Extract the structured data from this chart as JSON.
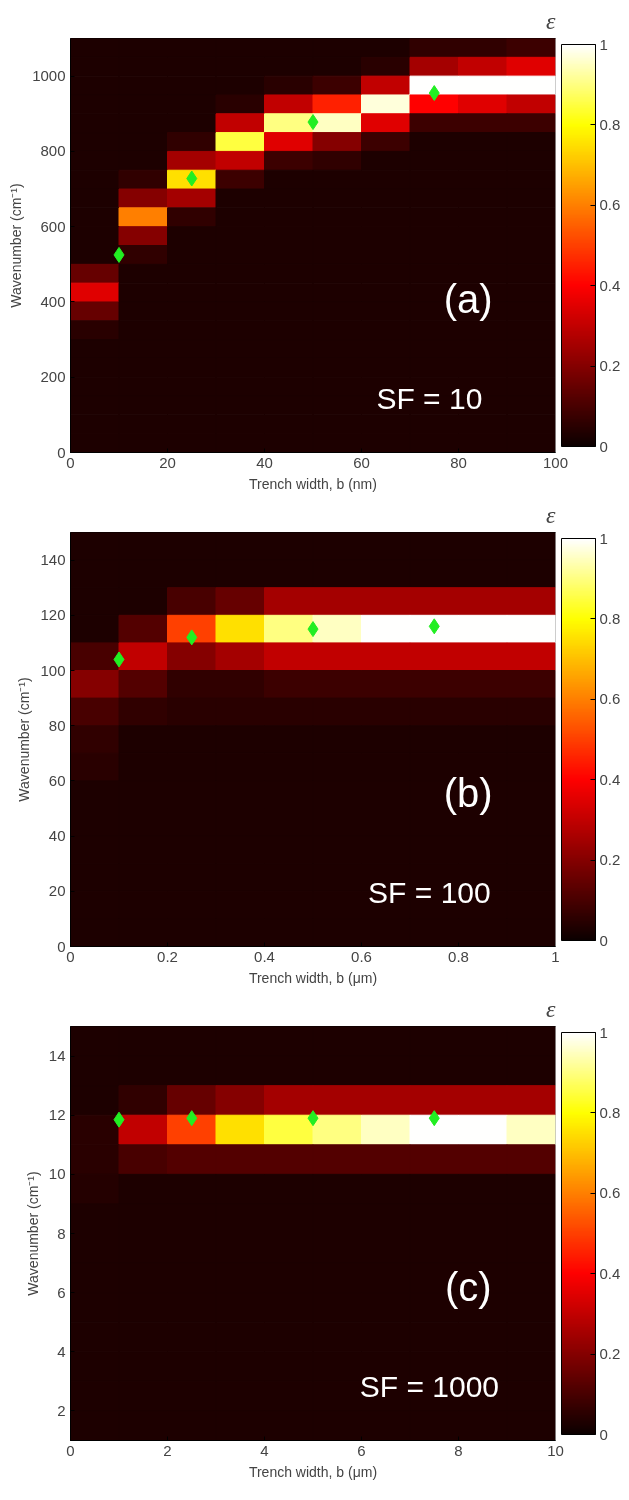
{
  "chart_data": [
    {
      "type": "heatmap",
      "xlabel": "Trench width, b (nm)",
      "ylabel": "Wavenumber (cm⁻¹)",
      "clabel": "ε",
      "annotations": [
        "(a)",
        "SF = 10"
      ],
      "xlim": [
        0,
        100
      ],
      "ylim": [
        0,
        1100
      ],
      "xticks": [
        0,
        20,
        40,
        60,
        80,
        100
      ],
      "yticks": [
        0,
        200,
        400,
        600,
        800,
        1000
      ],
      "clim": [
        0,
        1
      ],
      "cticks": [
        0,
        0.2,
        0.4,
        0.6,
        0.8,
        1
      ],
      "marker": "diamond",
      "x": [
        5,
        15,
        25,
        35,
        45,
        55,
        65,
        75,
        85,
        95
      ],
      "y": [
        1075,
        1025,
        975,
        925,
        875,
        825,
        775,
        725,
        675,
        625,
        575,
        525,
        475,
        425,
        375,
        325,
        275,
        225,
        175,
        125,
        75,
        25
      ],
      "cells": [
        [
          0.03,
          0.03,
          0.03,
          0.03,
          0.03,
          0.03,
          0.03,
          0.06,
          0.06,
          0.08
        ],
        [
          0.03,
          0.03,
          0.03,
          0.03,
          0.03,
          0.03,
          0.05,
          0.25,
          0.3,
          0.35
        ],
        [
          0.03,
          0.03,
          0.03,
          0.03,
          0.05,
          0.08,
          0.3,
          1,
          1,
          1
        ],
        [
          0.03,
          0.03,
          0.03,
          0.05,
          0.3,
          0.45,
          0.97,
          0.4,
          0.35,
          0.3
        ],
        [
          0.03,
          0.03,
          0.03,
          0.3,
          0.9,
          0.95,
          0.35,
          0.08,
          0.08,
          0.08
        ],
        [
          0.03,
          0.03,
          0.06,
          0.85,
          0.35,
          0.2,
          0.08,
          0.03,
          0.03,
          0.03
        ],
        [
          0.03,
          0.03,
          0.25,
          0.3,
          0.08,
          0.06,
          0.03,
          0.03,
          0.03,
          0.03
        ],
        [
          0.03,
          0.06,
          0.75,
          0.08,
          0.03,
          0.03,
          0.03,
          0.03,
          0.03,
          0.03
        ],
        [
          0.03,
          0.2,
          0.25,
          0.03,
          0.03,
          0.03,
          0.03,
          0.03,
          0.03,
          0.03
        ],
        [
          0.03,
          0.6,
          0.06,
          0.03,
          0.03,
          0.03,
          0.03,
          0.03,
          0.03,
          0.03
        ],
        [
          0.03,
          0.2,
          0.03,
          0.03,
          0.03,
          0.03,
          0.03,
          0.03,
          0.03,
          0.03
        ],
        [
          0.03,
          0.06,
          0.03,
          0.03,
          0.03,
          0.03,
          0.03,
          0.03,
          0.03,
          0.03
        ],
        [
          0.15,
          0.03,
          0.03,
          0.03,
          0.03,
          0.03,
          0.03,
          0.03,
          0.03,
          0.03
        ],
        [
          0.35,
          0.03,
          0.03,
          0.03,
          0.03,
          0.03,
          0.03,
          0.03,
          0.03,
          0.03
        ],
        [
          0.15,
          0.03,
          0.03,
          0.03,
          0.03,
          0.03,
          0.03,
          0.03,
          0.03,
          0.03
        ],
        [
          0.05,
          0.03,
          0.03,
          0.03,
          0.03,
          0.03,
          0.03,
          0.03,
          0.03,
          0.03
        ],
        [
          0.03,
          0.03,
          0.03,
          0.03,
          0.03,
          0.03,
          0.03,
          0.03,
          0.03,
          0.03
        ],
        [
          0.03,
          0.03,
          0.03,
          0.03,
          0.03,
          0.03,
          0.03,
          0.03,
          0.03,
          0.03
        ],
        [
          0.03,
          0.03,
          0.03,
          0.03,
          0.03,
          0.03,
          0.03,
          0.03,
          0.03,
          0.03
        ],
        [
          0.03,
          0.03,
          0.03,
          0.03,
          0.03,
          0.03,
          0.03,
          0.03,
          0.03,
          0.03
        ],
        [
          0.03,
          0.03,
          0.03,
          0.03,
          0.03,
          0.03,
          0.03,
          0.03,
          0.03,
          0.03
        ],
        [
          0.03,
          0.03,
          0.03,
          0.03,
          0.03,
          0.03,
          0.03,
          0.03,
          0.03,
          0.03
        ]
      ],
      "series": [
        {
          "type": "scatter",
          "color": "#22ee22",
          "x": [
            10,
            25,
            50,
            75
          ],
          "values": [
            525,
            728,
            878,
            955
          ]
        }
      ]
    },
    {
      "type": "heatmap",
      "xlabel": "Trench width, b (μm)",
      "ylabel": "Wavenumber (cm⁻¹)",
      "clabel": "ε",
      "annotations": [
        "(b)",
        "SF = 100"
      ],
      "xlim": [
        0,
        1
      ],
      "ylim": [
        0,
        150
      ],
      "xticks": [
        0,
        0.2,
        0.4,
        0.6,
        0.8,
        1
      ],
      "yticks": [
        0,
        20,
        40,
        60,
        80,
        100,
        120,
        140
      ],
      "clim": [
        0,
        1
      ],
      "cticks": [
        0,
        0.2,
        0.4,
        0.6,
        0.8,
        1
      ],
      "marker": "diamond",
      "x": [
        0.05,
        0.15,
        0.25,
        0.35,
        0.45,
        0.55,
        0.65,
        0.75,
        0.85,
        0.95
      ],
      "y": [
        145,
        135,
        125,
        115,
        105,
        95,
        85,
        75,
        65,
        55,
        45,
        35,
        25,
        15,
        5
      ],
      "cells": [
        [
          0.03,
          0.03,
          0.03,
          0.03,
          0.03,
          0.03,
          0.03,
          0.03,
          0.03,
          0.03
        ],
        [
          0.03,
          0.03,
          0.03,
          0.03,
          0.03,
          0.03,
          0.03,
          0.03,
          0.03,
          0.03
        ],
        [
          0.03,
          0.03,
          0.1,
          0.15,
          0.25,
          0.25,
          0.25,
          0.25,
          0.25,
          0.25
        ],
        [
          0.03,
          0.12,
          0.5,
          0.75,
          0.9,
          0.95,
          1,
          1,
          1,
          1
        ],
        [
          0.1,
          0.3,
          0.2,
          0.25,
          0.3,
          0.3,
          0.3,
          0.3,
          0.3,
          0.3
        ],
        [
          0.2,
          0.12,
          0.06,
          0.06,
          0.08,
          0.08,
          0.08,
          0.08,
          0.08,
          0.08
        ],
        [
          0.1,
          0.06,
          0.05,
          0.05,
          0.05,
          0.05,
          0.05,
          0.05,
          0.05,
          0.05
        ],
        [
          0.06,
          0.03,
          0.03,
          0.03,
          0.03,
          0.03,
          0.03,
          0.03,
          0.03,
          0.03
        ],
        [
          0.05,
          0.03,
          0.03,
          0.03,
          0.03,
          0.03,
          0.03,
          0.03,
          0.03,
          0.03
        ],
        [
          0.03,
          0.03,
          0.03,
          0.03,
          0.03,
          0.03,
          0.03,
          0.03,
          0.03,
          0.03
        ],
        [
          0.03,
          0.03,
          0.03,
          0.03,
          0.03,
          0.03,
          0.03,
          0.03,
          0.03,
          0.03
        ],
        [
          0.03,
          0.03,
          0.03,
          0.03,
          0.03,
          0.03,
          0.03,
          0.03,
          0.03,
          0.03
        ],
        [
          0.03,
          0.03,
          0.03,
          0.03,
          0.03,
          0.03,
          0.03,
          0.03,
          0.03,
          0.03
        ],
        [
          0.03,
          0.03,
          0.03,
          0.03,
          0.03,
          0.03,
          0.03,
          0.03,
          0.03,
          0.03
        ],
        [
          0.03,
          0.03,
          0.03,
          0.03,
          0.03,
          0.03,
          0.03,
          0.03,
          0.03,
          0.03
        ]
      ],
      "series": [
        {
          "type": "scatter",
          "color": "#22ee22",
          "x": [
            0.1,
            0.25,
            0.5,
            0.75
          ],
          "values": [
            104,
            112,
            115,
            116
          ]
        }
      ]
    },
    {
      "type": "heatmap",
      "xlabel": "Trench width, b (μm)",
      "ylabel": "Wavenumber (cm⁻¹)",
      "clabel": "ε",
      "annotations": [
        "(c)",
        "SF = 1000"
      ],
      "xlim": [
        0,
        10
      ],
      "ylim": [
        1,
        15
      ],
      "xticks": [
        0,
        2,
        4,
        6,
        8,
        10
      ],
      "yticks": [
        2,
        4,
        6,
        8,
        10,
        12,
        14
      ],
      "clim": [
        0,
        1
      ],
      "cticks": [
        0,
        0.2,
        0.4,
        0.6,
        0.8,
        1
      ],
      "marker": "diamond",
      "x": [
        0.5,
        1.5,
        2.5,
        3.5,
        4.5,
        5.5,
        6.5,
        7.5,
        8.5,
        9.5
      ],
      "y": [
        14.5,
        13.5,
        12.5,
        11.5,
        10.5,
        9.5,
        8.5,
        7.5,
        6.5,
        5.5,
        4.5,
        3.5,
        2.5,
        1.5
      ],
      "cells": [
        [
          0.03,
          0.03,
          0.03,
          0.03,
          0.03,
          0.03,
          0.03,
          0.03,
          0.03,
          0.03
        ],
        [
          0.03,
          0.03,
          0.03,
          0.03,
          0.03,
          0.03,
          0.03,
          0.03,
          0.03,
          0.03
        ],
        [
          0.03,
          0.06,
          0.15,
          0.2,
          0.25,
          0.25,
          0.25,
          0.25,
          0.25,
          0.25
        ],
        [
          0.05,
          0.3,
          0.5,
          0.75,
          0.85,
          0.9,
          0.95,
          1,
          1,
          0.95
        ],
        [
          0.05,
          0.1,
          0.12,
          0.12,
          0.12,
          0.12,
          0.12,
          0.12,
          0.12,
          0.12
        ],
        [
          0.04,
          0.03,
          0.03,
          0.03,
          0.03,
          0.03,
          0.03,
          0.03,
          0.03,
          0.03
        ],
        [
          0.03,
          0.03,
          0.03,
          0.03,
          0.03,
          0.03,
          0.03,
          0.03,
          0.03,
          0.03
        ],
        [
          0.03,
          0.03,
          0.03,
          0.03,
          0.03,
          0.03,
          0.03,
          0.03,
          0.03,
          0.03
        ],
        [
          0.03,
          0.03,
          0.03,
          0.03,
          0.03,
          0.03,
          0.03,
          0.03,
          0.03,
          0.03
        ],
        [
          0.03,
          0.03,
          0.03,
          0.03,
          0.03,
          0.03,
          0.03,
          0.03,
          0.03,
          0.03
        ],
        [
          0.03,
          0.03,
          0.03,
          0.03,
          0.03,
          0.03,
          0.03,
          0.03,
          0.03,
          0.03
        ],
        [
          0.03,
          0.03,
          0.03,
          0.03,
          0.03,
          0.03,
          0.03,
          0.03,
          0.03,
          0.03
        ],
        [
          0.03,
          0.03,
          0.03,
          0.03,
          0.03,
          0.03,
          0.03,
          0.03,
          0.03,
          0.03
        ],
        [
          0.03,
          0.03,
          0.03,
          0.03,
          0.03,
          0.03,
          0.03,
          0.03,
          0.03,
          0.03
        ]
      ],
      "series": [
        {
          "type": "scatter",
          "color": "#22ee22",
          "x": [
            1,
            2.5,
            5,
            7.5
          ],
          "values": [
            11.85,
            11.9,
            11.9,
            11.9
          ]
        }
      ]
    }
  ]
}
